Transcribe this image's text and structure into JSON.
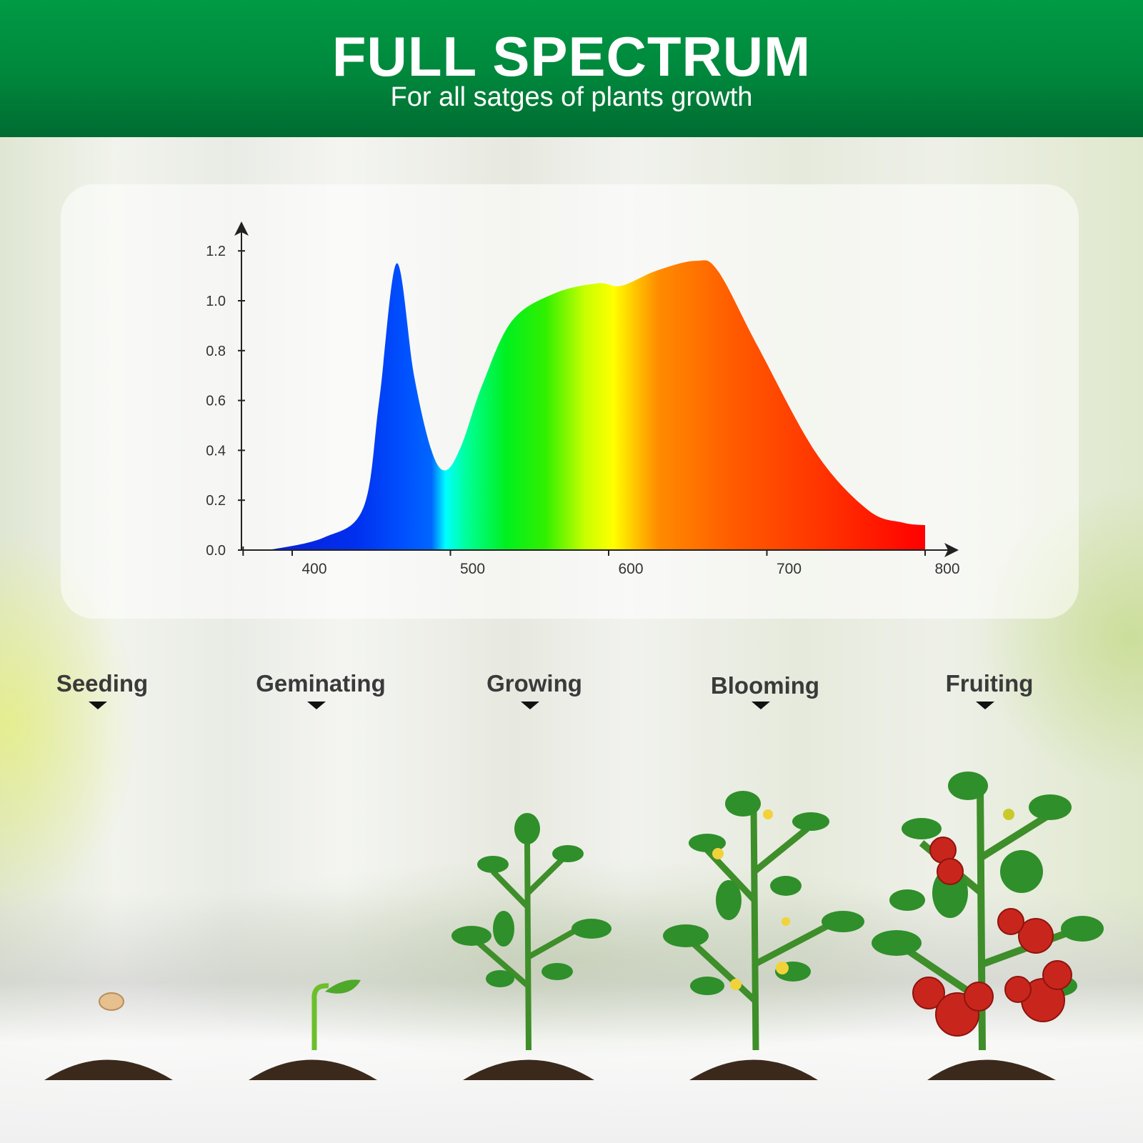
{
  "header": {
    "title": "FULL SPECTRUM",
    "subtitle": "For all satges of plants growth"
  },
  "chart_data": {
    "type": "area",
    "title": "",
    "xlabel": "",
    "ylabel": "",
    "xlim": [
      369,
      820
    ],
    "ylim": [
      0,
      1.3
    ],
    "x_ticks": [
      "400",
      "500",
      "600",
      "700",
      "800"
    ],
    "y_ticks": [
      "0.0",
      "0.2",
      "0.4",
      "0.6",
      "0.8",
      "1.0",
      "1.2"
    ],
    "fill": "spectrum gradient (wavelength colors)",
    "grid": false,
    "x": [
      385,
      420,
      445,
      455,
      466,
      477,
      488,
      497,
      507,
      520,
      539,
      566,
      593,
      608,
      630,
      655,
      669,
      694,
      731,
      764,
      786,
      800
    ],
    "y": [
      0,
      0.05,
      0.17,
      0.6,
      1.15,
      0.7,
      0.4,
      0.32,
      0.42,
      0.66,
      0.92,
      1.03,
      1.07,
      1.06,
      1.12,
      1.16,
      1.12,
      0.82,
      0.39,
      0.16,
      0.11,
      0.1
    ]
  },
  "stages": [
    {
      "label": "Seeding"
    },
    {
      "label": "Geminating"
    },
    {
      "label": "Growing"
    },
    {
      "label": "Blooming"
    },
    {
      "label": "Fruiting"
    }
  ]
}
